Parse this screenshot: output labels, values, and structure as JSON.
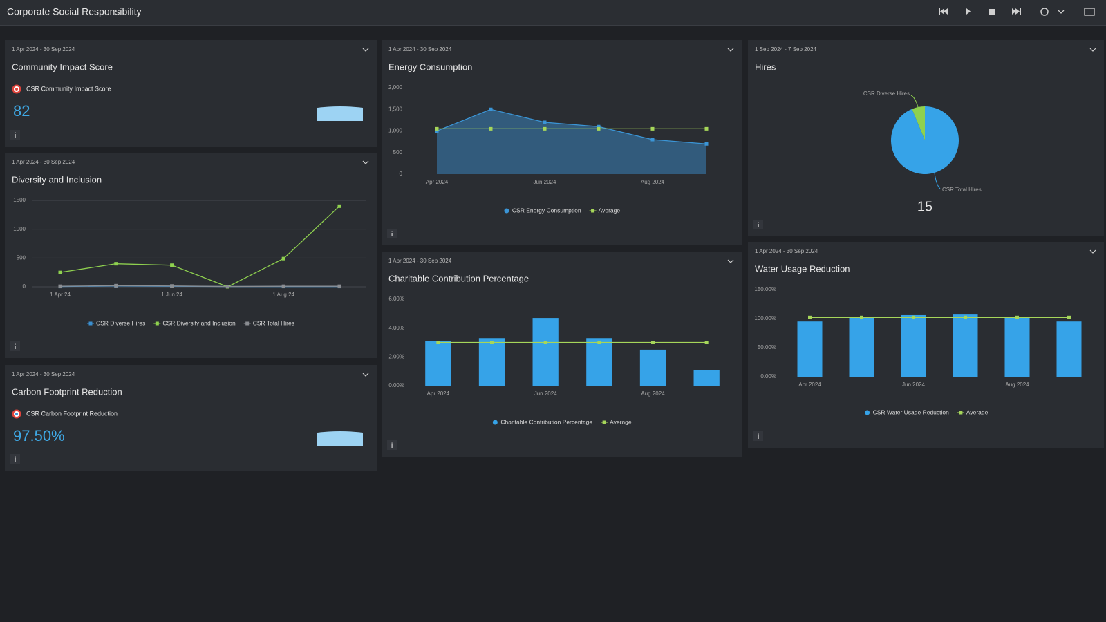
{
  "header": {
    "title": "Corporate Social Responsibility"
  },
  "panels": [
    {
      "date_range": "1 Apr 2024 - 30 Sep 2024",
      "title": "Community Impact Score",
      "kpi": {
        "label": "CSR Community Impact Score",
        "value": 82
      }
    },
    {
      "date_range": "1 Apr 2024 - 30 Sep 2024",
      "title": "Diversity and Inclusion",
      "chart_data": {
        "type": "line",
        "grid": true,
        "categories": [
          "1 Apr 24",
          null,
          "1 Jun 24",
          null,
          "1 Aug 24",
          null
        ],
        "series": [
          {
            "name": "CSR Diverse Hires",
            "color": "#3b8fd0",
            "values": [
              5,
              15,
              10,
              5,
              5,
              5
            ]
          },
          {
            "name": "CSR Diversity and Inclusion",
            "color": "#8fd14f",
            "values": [
              250,
              400,
              375,
              0,
              490,
              1400
            ]
          },
          {
            "name": "CSR Total Hires",
            "color": "#8a8d92",
            "values": [
              10,
              20,
              15,
              5,
              10,
              10
            ]
          }
        ],
        "ylim": [
          0,
          1500
        ],
        "yticks": [
          0,
          500,
          1000,
          1500
        ]
      }
    },
    {
      "date_range": "1 Apr 2024 - 30 Sep 2024",
      "title": "Carbon Footprint Reduction",
      "kpi": {
        "label": "CSR Carbon Footprint Reduction",
        "value": "97.50%"
      }
    },
    {
      "date_range": "1 Apr 2024 - 30 Sep 2024",
      "title": "Energy Consumption",
      "chart_data": {
        "type": "area",
        "grid": false,
        "categories": [
          "Apr 2024",
          null,
          "Jun 2024",
          null,
          "Aug 2024",
          null
        ],
        "series": [
          {
            "name": "CSR Energy Consumption",
            "color": "#3b95d6",
            "values": [
              1000,
              1500,
              1200,
              1100,
              800,
              700
            ]
          },
          {
            "name": "Average",
            "type": "line",
            "color": "#a6d65a",
            "values": [
              1050,
              1050,
              1050,
              1050,
              1050,
              1050
            ]
          }
        ],
        "ylim": [
          0,
          2000
        ],
        "yticks": [
          0,
          500,
          {
            "value": 1000,
            "label": "1,000"
          },
          {
            "value": 1500,
            "label": "1,500"
          },
          {
            "value": 2000,
            "label": "2,000"
          }
        ]
      }
    },
    {
      "date_range": "1 Apr 2024 - 30 Sep 2024",
      "title": "Charitable Contribution Percentage",
      "chart_data": {
        "type": "bar",
        "grid": false,
        "categories": [
          "Apr 2024",
          null,
          "Jun 2024",
          null,
          "Aug 2024",
          null
        ],
        "series": [
          {
            "name": "Charitable Contribution Percentage",
            "color": "#36a3e8",
            "values": [
              3.1,
              3.3,
              4.7,
              3.3,
              2.5,
              1.1
            ]
          },
          {
            "name": "Average",
            "type": "line",
            "color": "#a6d65a",
            "values": [
              3,
              3,
              3,
              3,
              3,
              3
            ]
          }
        ],
        "ylim": [
          0,
          6
        ],
        "yticks": [
          {
            "value": 0,
            "label": "0.00%"
          },
          {
            "value": 2,
            "label": "2.00%"
          },
          {
            "value": 4,
            "label": "4.00%"
          },
          {
            "value": 6,
            "label": "6.00%"
          }
        ]
      }
    },
    {
      "date_range": "1 Sep 2024 - 7 Sep 2024",
      "title": "Hires",
      "chart_data": {
        "type": "pie",
        "categories": [
          "CSR Diverse Hires",
          "CSR Total Hires"
        ],
        "values": [
          1,
          15
        ],
        "colors": [
          "#8fd14f",
          "#36a3e8"
        ],
        "center_value": 15
      }
    },
    {
      "date_range": "1 Apr 2024 - 30 Sep 2024",
      "title": "Water Usage Reduction",
      "chart_data": {
        "type": "bar",
        "grid": false,
        "categories": [
          "Apr 2024",
          null,
          "Jun 2024",
          null,
          "Aug 2024",
          null
        ],
        "series": [
          {
            "name": "CSR Water Usage Reduction",
            "color": "#36a3e8",
            "values": [
              95,
              103,
              106,
              107,
              103,
              95
            ]
          },
          {
            "name": "Average",
            "type": "line",
            "color": "#a6d65a",
            "values": [
              102,
              102,
              102,
              102,
              102,
              102
            ]
          }
        ],
        "ylim": [
          0,
          150
        ],
        "yticks": [
          {
            "value": 0,
            "label": "0.00%"
          },
          {
            "value": 50,
            "label": "50.00%"
          },
          {
            "value": 100,
            "label": "100.00%"
          },
          {
            "value": 150,
            "label": "150.00%"
          }
        ]
      }
    }
  ]
}
